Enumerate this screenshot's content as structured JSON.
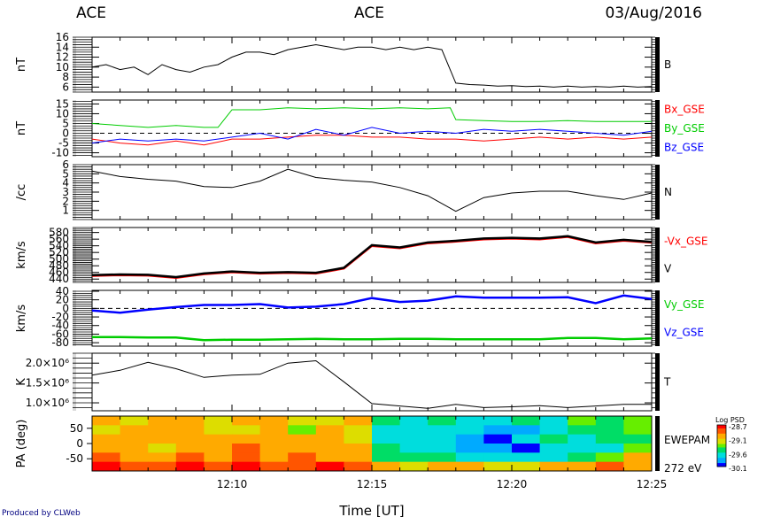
{
  "header": {
    "left": "ACE",
    "center": "ACE",
    "right": "03/Aug/2016"
  },
  "footer": {
    "credit": "Produced by CLWeb",
    "xlabel": "Time [UT]"
  },
  "chart_data": {
    "type": "line",
    "x_ticks": [
      "12:10",
      "12:15",
      "12:20",
      "12:25"
    ],
    "x_range": [
      "12:05",
      "12:25"
    ],
    "panels": [
      {
        "id": "b",
        "ylabel": "nT",
        "ylim": [
          5,
          16
        ],
        "yticks": [
          "6",
          "8",
          "10",
          "12",
          "14",
          "16"
        ],
        "yvals": [
          6,
          8,
          10,
          12,
          14,
          16
        ],
        "series": [
          {
            "name": "B",
            "color": "#000000",
            "x": [
              0,
              0.5,
              1,
              1.5,
              2,
              2.5,
              3,
              3.5,
              4,
              4.5,
              5,
              5.5,
              6,
              6.5,
              7,
              7.5,
              8,
              8.5,
              9,
              9.5,
              10,
              10.5,
              11,
              11.5,
              12,
              12.5,
              13,
              13.5,
              14,
              14.5,
              15,
              15.5,
              16,
              16.5,
              17,
              17.5,
              18,
              18.5,
              19,
              19.5,
              20
            ],
            "y": [
              10,
              10.5,
              9.5,
              10,
              8.5,
              10.5,
              9.5,
              9,
              10,
              10.5,
              12,
              13,
              13,
              12.5,
              13.5,
              14,
              14.5,
              14,
              13.5,
              14,
              14,
              13.5,
              14,
              13.5,
              14,
              13.5,
              6.8,
              6.5,
              6.4,
              6.2,
              6.3,
              6.1,
              6.2,
              6.0,
              6.2,
              6.0,
              6.1,
              6.0,
              6.2,
              6.0,
              6.1
            ]
          }
        ]
      },
      {
        "id": "bc",
        "ylabel": "nT",
        "ylim": [
          -12,
          17
        ],
        "zero_line": true,
        "yticks": [
          "-10",
          "-5",
          "0",
          "5",
          "10",
          "15"
        ],
        "yvals": [
          -10,
          -5,
          0,
          5,
          10,
          15
        ],
        "series": [
          {
            "name": "Bx_GSE",
            "color": "#ff0000",
            "x": [
              0,
              1,
              2,
              3,
              4,
              5,
              6,
              7,
              8,
              9,
              10,
              11,
              12,
              13,
              14,
              15,
              16,
              17,
              18,
              19,
              20
            ],
            "y": [
              -3,
              -5,
              -6,
              -4,
              -6,
              -3,
              -3,
              -2,
              -1,
              -1,
              -2,
              -2,
              -3,
              -3,
              -4,
              -3,
              -2,
              -3,
              -2,
              -3,
              -2
            ]
          },
          {
            "name": "By_GSE",
            "color": "#00cc00",
            "x": [
              0,
              1,
              2,
              3,
              4,
              4.5,
              5,
              6,
              7,
              8,
              9,
              10,
              11,
              12,
              12.8,
              13,
              14,
              15,
              16,
              17,
              18,
              19,
              20
            ],
            "y": [
              5,
              4,
              3,
              4,
              3,
              3,
              12,
              12,
              13,
              12.5,
              13,
              12.5,
              13,
              12.5,
              13,
              7,
              6.5,
              6,
              6,
              6.5,
              6,
              6,
              6
            ]
          },
          {
            "name": "Bz_GSE",
            "color": "#0000ff",
            "x": [
              0,
              1,
              2,
              3,
              4,
              5,
              6,
              7,
              8,
              9,
              10,
              11,
              12,
              13,
              14,
              15,
              16,
              17,
              18,
              19,
              20
            ],
            "y": [
              -5,
              -3,
              -4,
              -3,
              -4,
              -2,
              0,
              -3,
              2,
              -1,
              3,
              0,
              1,
              0,
              2,
              1,
              2,
              1,
              0,
              -1,
              1
            ]
          }
        ]
      },
      {
        "id": "n",
        "ylabel": "/cc",
        "ylim": [
          0,
          6
        ],
        "yticks": [
          "1",
          "2",
          "3",
          "4",
          "5",
          "6"
        ],
        "yvals": [
          1,
          2,
          3,
          4,
          5,
          6
        ],
        "series": [
          {
            "name": "N",
            "color": "#000000",
            "x": [
              0,
              1,
              2,
              3,
              4,
              5,
              6,
              7,
              8,
              9,
              10,
              11,
              12,
              13,
              14,
              15,
              16,
              17,
              18,
              19,
              20
            ],
            "y": [
              5.3,
              4.7,
              4.4,
              4.2,
              3.6,
              3.5,
              4.2,
              5.5,
              4.6,
              4.3,
              4.1,
              3.5,
              2.6,
              0.9,
              2.4,
              2.9,
              3.1,
              3.1,
              2.6,
              2.2,
              2.9
            ]
          }
        ]
      },
      {
        "id": "v",
        "ylabel": "km/s",
        "ylim": [
          430,
          595
        ],
        "yticks": [
          "440",
          "460",
          "480",
          "500",
          "520",
          "540",
          "560",
          "580"
        ],
        "yvals": [
          440,
          460,
          480,
          500,
          520,
          540,
          560,
          580
        ],
        "series": [
          {
            "name": "-Vx_GSE",
            "color": "#ff0000",
            "x": [
              0,
              1,
              2,
              3,
              4,
              5,
              6,
              7,
              8,
              9,
              10,
              11,
              12,
              13,
              14,
              15,
              16,
              17,
              18,
              19,
              20
            ],
            "y": [
              450,
              452,
              451,
              444,
              455,
              461,
              457,
              459,
              457,
              472,
              540,
              533,
              548,
              553,
              560,
              562,
              560,
              567,
              548,
              556,
              550
            ]
          },
          {
            "name": "V",
            "color": "#000000",
            "x": [
              0,
              1,
              2,
              3,
              4,
              5,
              6,
              7,
              8,
              9,
              10,
              11,
              12,
              13,
              14,
              15,
              16,
              17,
              18,
              19,
              20
            ],
            "y": [
              452,
              454,
              453,
              446,
              457,
              463,
              459,
              461,
              459,
              474,
              542,
              535,
              550,
              555,
              562,
              564,
              562,
              569,
              550,
              558,
              552
            ]
          }
        ]
      },
      {
        "id": "vc",
        "ylabel": "km/s",
        "ylim": [
          -88,
          42
        ],
        "zero_line": true,
        "yticks": [
          "-80",
          "-60",
          "-40",
          "-20",
          "0",
          "20",
          "40"
        ],
        "yvals": [
          -80,
          -60,
          -40,
          -20,
          0,
          20,
          40
        ],
        "series": [
          {
            "name": "Vy_GSE",
            "color": "#00cc00",
            "x": [
              0,
              1,
              2,
              3,
              4,
              5,
              6,
              7,
              8,
              9,
              10,
              11,
              12,
              13,
              14,
              15,
              16,
              17,
              18,
              19,
              20
            ],
            "y": [
              -67,
              -67,
              -68,
              -68,
              -74,
              -73,
              -73,
              -72,
              -71,
              -72,
              -72,
              -71,
              -71,
              -72,
              -72,
              -72,
              -72,
              -69,
              -69,
              -72,
              -70
            ]
          },
          {
            "name": "Vz_GSE",
            "color": "#0000ff",
            "x": [
              0,
              1,
              2,
              3,
              4,
              5,
              6,
              7,
              8,
              9,
              10,
              11,
              12,
              13,
              14,
              15,
              16,
              17,
              18,
              19,
              20
            ],
            "y": [
              -5,
              -10,
              -3,
              3,
              8,
              8,
              10,
              2,
              4,
              10,
              24,
              15,
              18,
              28,
              25,
              25,
              25,
              26,
              12,
              30,
              22
            ]
          }
        ]
      },
      {
        "id": "t",
        "ylabel": "K",
        "ylim": [
          800000,
          2250000
        ],
        "yticks": [
          "1.0×10⁶",
          "1.5×10⁶",
          "2.0×10⁶"
        ],
        "yvals": [
          1000000,
          1500000,
          2000000
        ],
        "series": [
          {
            "name": "T",
            "color": "#000000",
            "x": [
              0,
              1,
              2,
              3,
              4,
              5,
              6,
              7,
              8,
              9,
              10,
              11,
              12,
              13,
              14,
              15,
              16,
              17,
              18,
              19,
              20
            ],
            "y": [
              1700000,
              1820000,
              2020000,
              1860000,
              1640000,
              1700000,
              1720000,
              2000000,
              2060000,
              1530000,
              980000,
              920000,
              860000,
              960000,
              880000,
              900000,
              930000,
              880000,
              920000,
              960000,
              960000
            ]
          }
        ]
      }
    ],
    "spectrogram": {
      "ylabel": "PA (deg)",
      "yticks": [
        "50",
        "0",
        "-50"
      ],
      "yvals": [
        50,
        0,
        -50
      ],
      "ylim": [
        -90,
        90
      ],
      "label": "EWEPAM",
      "energy": "272 eV",
      "colorbar": {
        "title": "Log PSD",
        "ticks": [
          "-28.7",
          "-29.1",
          "-29.6",
          "-30.1"
        ]
      },
      "levels": [
        [
          0.7,
          0.62,
          0.75,
          0.8,
          0.6,
          0.75,
          0.7,
          0.62,
          0.6,
          0.8,
          0.4,
          0.3,
          0.35,
          0.25,
          0.2,
          0.35,
          0.3,
          0.5,
          0.4,
          0.45
        ],
        [
          0.62,
          0.7,
          0.8,
          0.7,
          0.65,
          0.6,
          0.7,
          0.55,
          0.7,
          0.65,
          0.3,
          0.2,
          0.3,
          0.22,
          0.15,
          0.15,
          0.3,
          0.4,
          0.35,
          0.5
        ],
        [
          0.75,
          0.8,
          0.7,
          0.75,
          0.7,
          0.8,
          0.75,
          0.7,
          0.8,
          0.6,
          0.25,
          0.3,
          0.2,
          0.18,
          0.05,
          0.2,
          0.35,
          0.3,
          0.4,
          0.35
        ],
        [
          0.8,
          0.7,
          0.62,
          0.8,
          0.75,
          0.82,
          0.7,
          0.8,
          0.75,
          0.7,
          0.35,
          0.25,
          0.3,
          0.15,
          0.1,
          0.05,
          0.2,
          0.3,
          0.25,
          0.5
        ],
        [
          0.85,
          0.8,
          0.75,
          0.9,
          0.8,
          0.85,
          0.8,
          0.85,
          0.8,
          0.75,
          0.4,
          0.35,
          0.4,
          0.3,
          0.25,
          0.2,
          0.3,
          0.4,
          0.5,
          0.7
        ],
        [
          0.95,
          0.9,
          0.85,
          0.95,
          0.92,
          0.95,
          0.85,
          0.9,
          0.95,
          0.85,
          0.7,
          0.6,
          0.8,
          0.7,
          0.6,
          0.65,
          0.75,
          0.8,
          0.85,
          0.8
        ]
      ]
    }
  }
}
